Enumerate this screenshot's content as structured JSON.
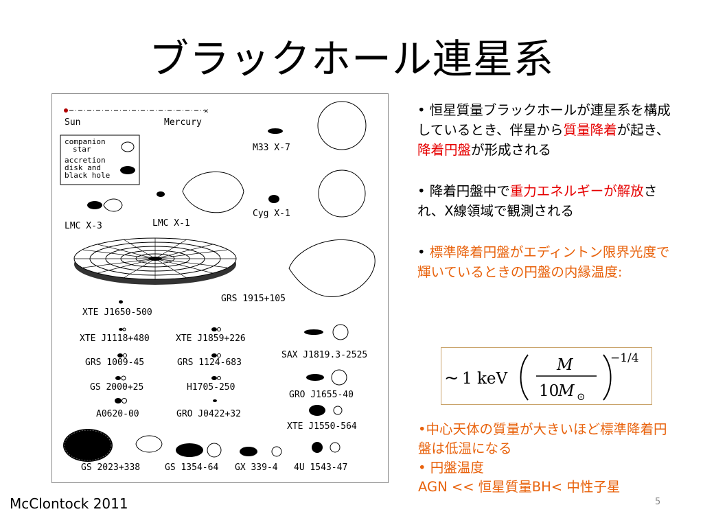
{
  "title": "ブラックホール連星系",
  "figure": {
    "sun_label": "Sun",
    "mercury_label": "Mercury",
    "legend": {
      "companion": "companion\nstar",
      "companion_l1": "companion",
      "companion_l2": "star",
      "disk_l1": "accretion",
      "disk_l2": "disk  and",
      "disk_l3": "black hole"
    },
    "systems": [
      "M33 X-7",
      "LMC X-3",
      "LMC X-1",
      "Cyg X-1",
      "GRS 1915+105",
      "XTE J1650-500",
      "XTE J1118+480",
      "XTE J1859+226",
      "SAX J1819.3-2525",
      "GRS 1009-45",
      "GRS 1124-683",
      "GS 2000+25",
      "H1705-250",
      "GRO J1655-40",
      "A0620-00",
      "GRO J0422+32",
      "XTE J1550-564",
      "GS 2023+338",
      "GS 1354-64",
      "GX 339-4",
      "4U 1543-47"
    ]
  },
  "bullets": {
    "b1_pre": "• 恒星質量ブラックホールが連星系を構成しているとき、伴星から",
    "b1_red1": "質量降着",
    "b1_mid": "が起き、",
    "b1_red2": "降着円盤",
    "b1_post": "が形成される",
    "b2_pre": "• 降着円盤中で",
    "b2_red": "重力エネルギーが解放",
    "b2_post": "され、X線領域で観測される",
    "b3_bullet": "• ",
    "b3_orange": "標準降着円盤がエディントン限界光度で輝いているときの円盤の内縁温度:"
  },
  "formula": {
    "tilde": "~",
    "one": "1",
    "kev": "keV",
    "numerator": "M",
    "denominator_num": "10",
    "denominator_m": "M",
    "sun_symbol": "⊙",
    "exponent": "−1/4"
  },
  "lower": {
    "l1": "•中心天体の質量が大きいほど標準降着円盤は低温になる",
    "l2": "• 円盤温度",
    "l3": "AGN << 恒星質量BH<  中性子星"
  },
  "credit": "McClontock 2011",
  "page_number": "5"
}
